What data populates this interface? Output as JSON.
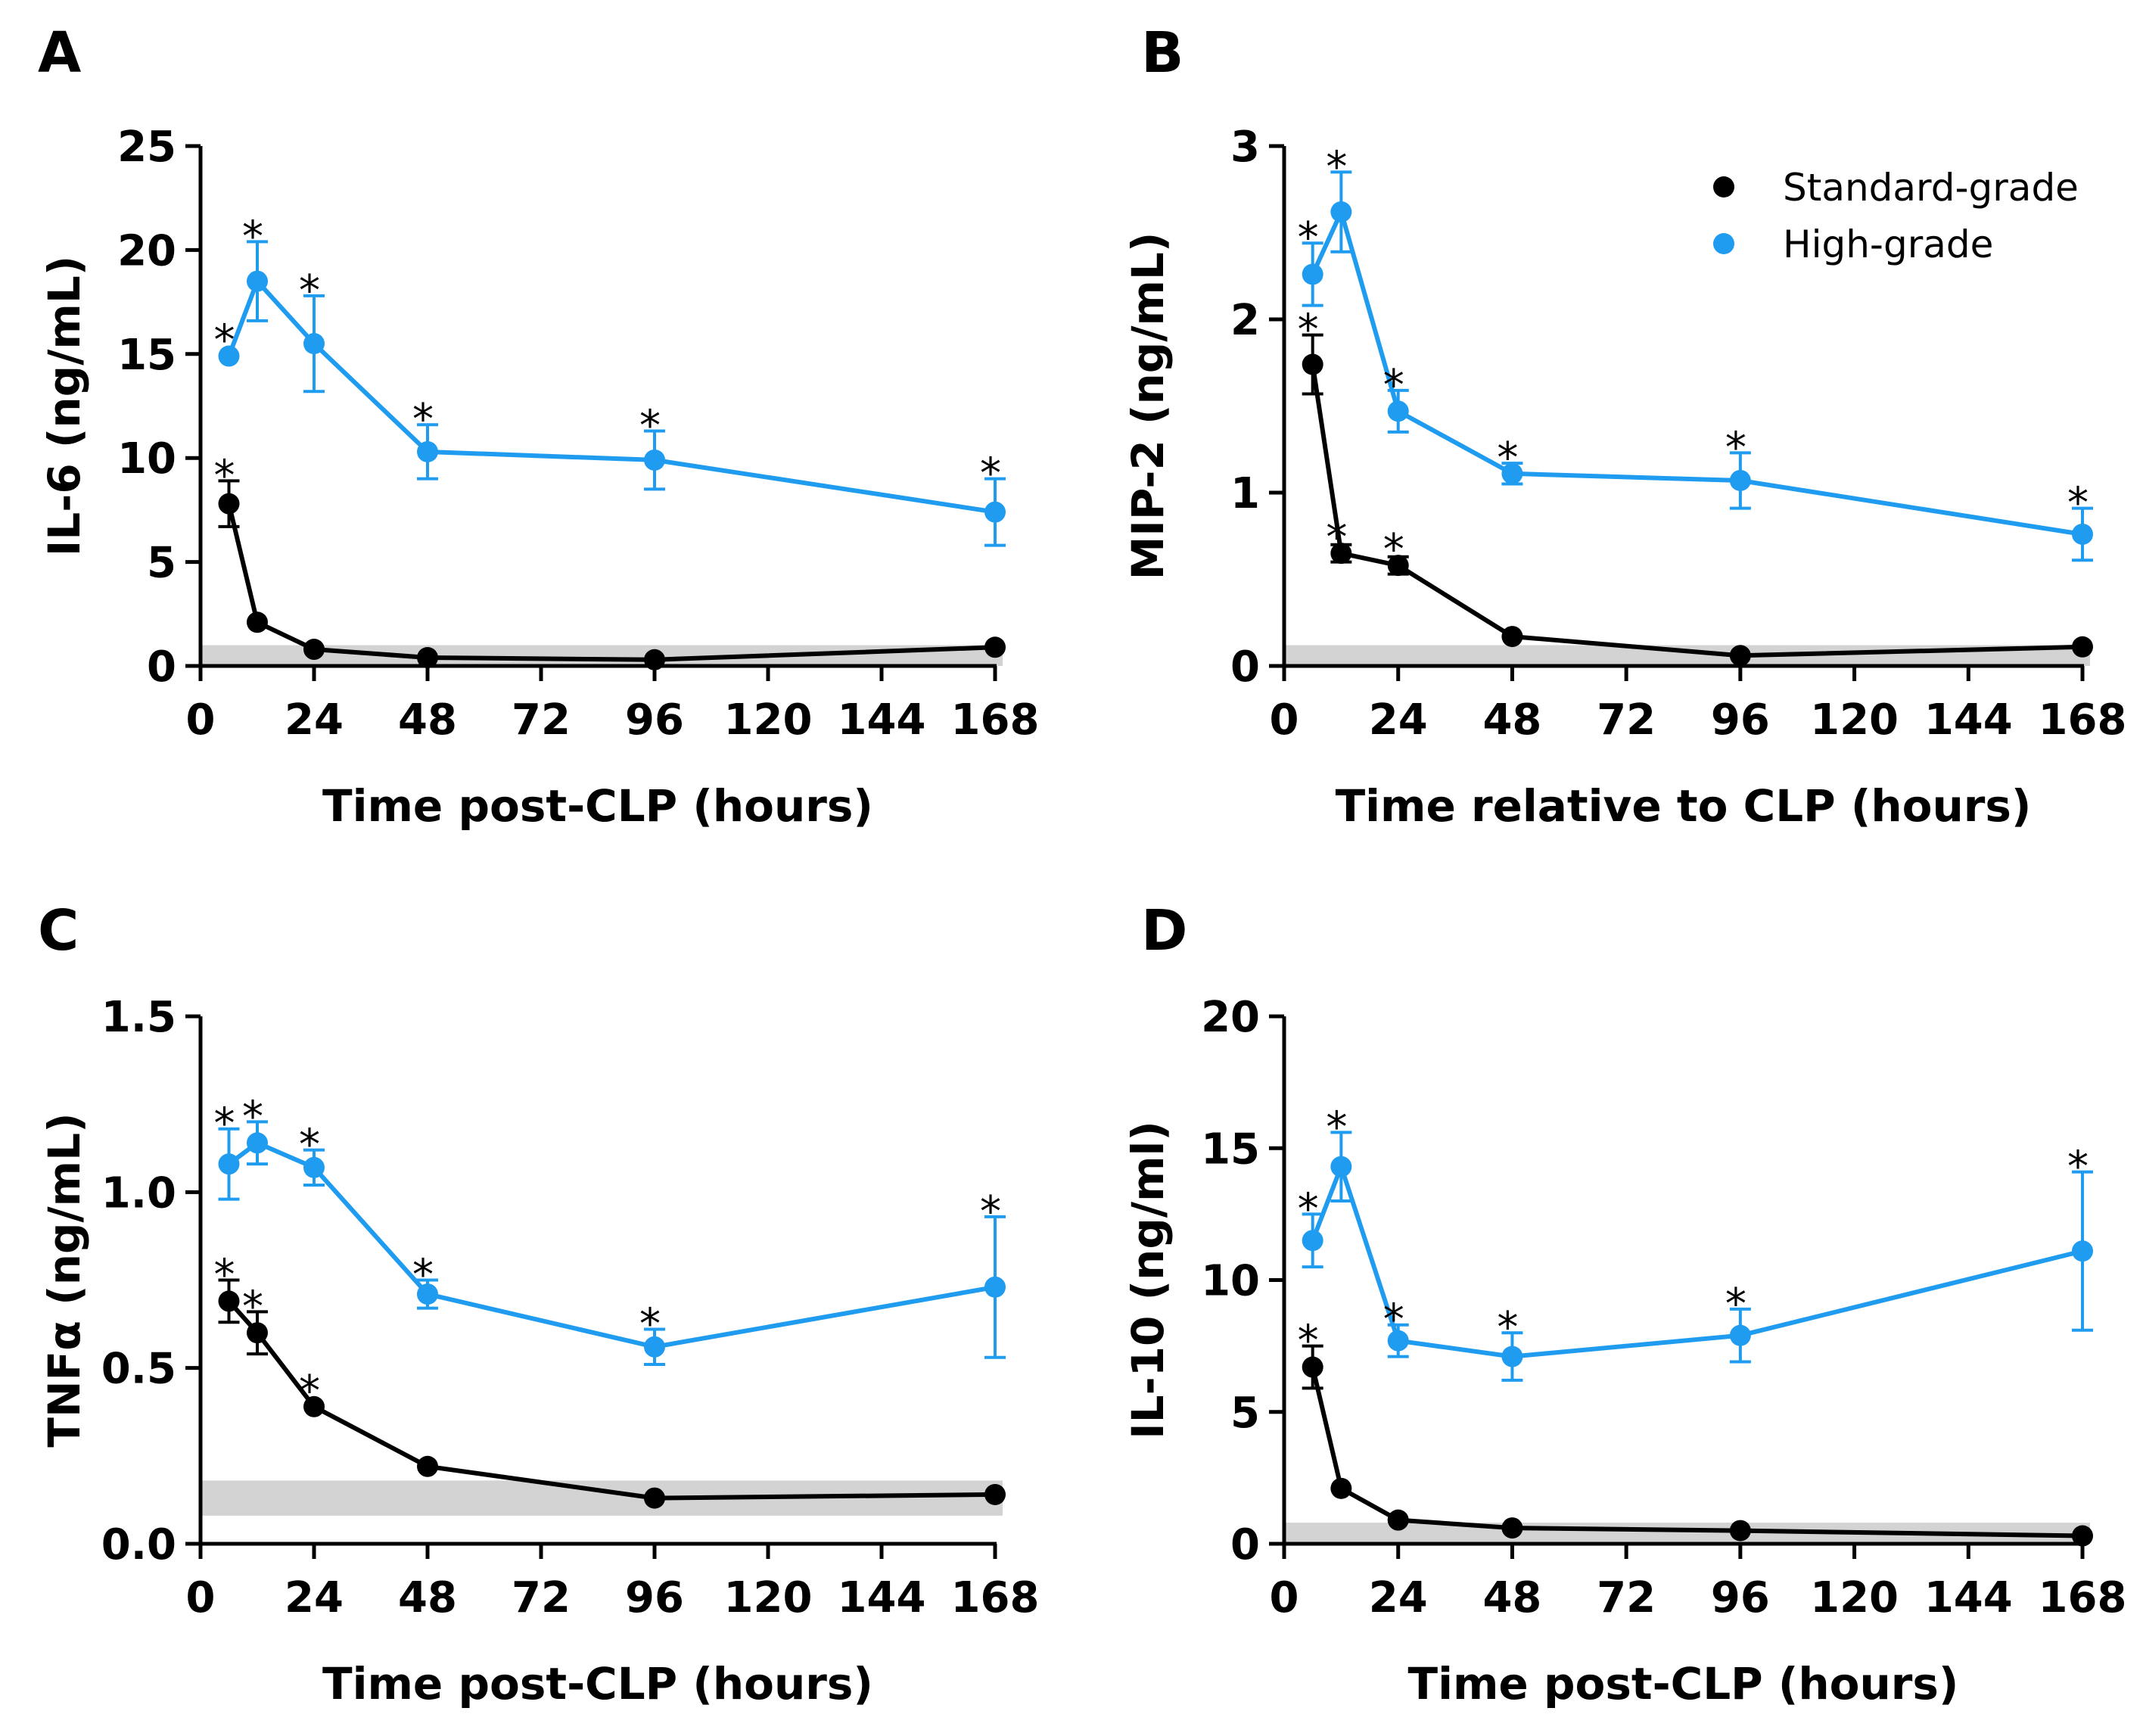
{
  "colors": {
    "standard": "#000000",
    "high": "#1f9cf0",
    "baseline": "#d3d3d3"
  },
  "legend": {
    "standard_label": "Standard-grade",
    "high_label": "High-grade",
    "placement": "top-right of panel B"
  },
  "chart_data": [
    {
      "panel": "A",
      "type": "line",
      "xlabel": "Time post-CLP (hours)",
      "ylabel": "IL-6 (ng/mL)",
      "xlim": [
        0,
        168
      ],
      "ylim": [
        0,
        25
      ],
      "xticks": [
        0,
        24,
        48,
        72,
        96,
        120,
        144,
        168
      ],
      "xtick_labels": [
        "0",
        "24",
        "48",
        "72",
        "96",
        "120",
        "144",
        "168"
      ],
      "yticks": [
        0,
        5,
        10,
        15,
        20,
        25
      ],
      "ytick_labels": [
        "0",
        "5",
        "10",
        "15",
        "20",
        "25"
      ],
      "baseline_band": [
        0,
        1.0
      ],
      "series": [
        {
          "name": "Standard-grade",
          "x": [
            6,
            12,
            24,
            48,
            96,
            168
          ],
          "y": [
            7.8,
            2.1,
            0.8,
            0.4,
            0.3,
            0.9
          ],
          "err": [
            1.1,
            0,
            0,
            0,
            0,
            0
          ],
          "sig": [
            true,
            false,
            false,
            false,
            false,
            false
          ]
        },
        {
          "name": "High-grade",
          "x": [
            6,
            12,
            24,
            48,
            96,
            168
          ],
          "y": [
            14.9,
            18.5,
            15.5,
            10.3,
            9.9,
            7.4
          ],
          "err": [
            0,
            1.9,
            2.3,
            1.3,
            1.4,
            1.6
          ],
          "sig": [
            true,
            true,
            true,
            true,
            true,
            true
          ]
        }
      ]
    },
    {
      "panel": "B",
      "type": "line",
      "xlabel": "Time relative to CLP (hours)",
      "ylabel": "MIP-2 (ng/mL)",
      "xlim": [
        0,
        168
      ],
      "ylim": [
        0,
        3
      ],
      "xticks": [
        0,
        24,
        48,
        72,
        96,
        120,
        144,
        168
      ],
      "xtick_labels": [
        "0",
        "24",
        "48",
        "72",
        "96",
        "120",
        "144",
        "168"
      ],
      "yticks": [
        0,
        1,
        2,
        3
      ],
      "ytick_labels": [
        "0",
        "1",
        "2",
        "3"
      ],
      "baseline_band": [
        0,
        0.12
      ],
      "series": [
        {
          "name": "Standard-grade",
          "x": [
            6,
            12,
            24,
            48,
            96,
            168
          ],
          "y": [
            1.74,
            0.65,
            0.58,
            0.17,
            0.06,
            0.11
          ],
          "err": [
            0.17,
            0.05,
            0.05,
            0,
            0,
            0
          ],
          "sig": [
            true,
            true,
            true,
            false,
            false,
            false
          ]
        },
        {
          "name": "High-grade",
          "x": [
            6,
            12,
            24,
            48,
            96,
            168
          ],
          "y": [
            2.26,
            2.62,
            1.47,
            1.11,
            1.07,
            0.76
          ],
          "err": [
            0.18,
            0.23,
            0.12,
            0.06,
            0.16,
            0.15
          ],
          "sig": [
            true,
            true,
            true,
            true,
            true,
            true
          ]
        }
      ]
    },
    {
      "panel": "C",
      "type": "line",
      "xlabel": "Time post-CLP (hours)",
      "ylabel": "TNFα (ng/mL)",
      "xlim": [
        0,
        168
      ],
      "ylim": [
        0,
        1.5
      ],
      "xticks": [
        0,
        24,
        48,
        72,
        96,
        120,
        144,
        168
      ],
      "xtick_labels": [
        "0",
        "24",
        "48",
        "72",
        "96",
        "120",
        "144",
        "168"
      ],
      "yticks": [
        0,
        0.5,
        1.0,
        1.5
      ],
      "ytick_labels": [
        "0.0",
        "0.5",
        "1.0",
        "1.5"
      ],
      "baseline_band": [
        0.08,
        0.18
      ],
      "series": [
        {
          "name": "Standard-grade",
          "x": [
            6,
            12,
            24,
            48,
            96,
            168
          ],
          "y": [
            0.69,
            0.6,
            0.39,
            0.22,
            0.13,
            0.14
          ],
          "err": [
            0.06,
            0.06,
            0,
            0,
            0,
            0
          ],
          "sig": [
            true,
            true,
            true,
            false,
            false,
            false
          ]
        },
        {
          "name": "High-grade",
          "x": [
            6,
            12,
            24,
            48,
            96,
            168
          ],
          "y": [
            1.08,
            1.14,
            1.07,
            0.71,
            0.56,
            0.73
          ],
          "err": [
            0.1,
            0.06,
            0.05,
            0.04,
            0.05,
            0.2
          ],
          "sig": [
            true,
            true,
            true,
            true,
            true,
            true
          ]
        }
      ]
    },
    {
      "panel": "D",
      "type": "line",
      "xlabel": "Time post-CLP (hours)",
      "ylabel": "IL-10 (ng/ml)",
      "xlim": [
        0,
        168
      ],
      "ylim": [
        0,
        20
      ],
      "xticks": [
        0,
        24,
        48,
        72,
        96,
        120,
        144,
        168
      ],
      "xtick_labels": [
        "0",
        "24",
        "48",
        "72",
        "96",
        "120",
        "144",
        "168"
      ],
      "yticks": [
        0,
        5,
        10,
        15,
        20
      ],
      "ytick_labels": [
        "0",
        "5",
        "10",
        "15",
        "20"
      ],
      "baseline_band": [
        0,
        0.8
      ],
      "series": [
        {
          "name": "Standard-grade",
          "x": [
            6,
            12,
            24,
            48,
            96,
            168
          ],
          "y": [
            6.7,
            2.1,
            0.9,
            0.6,
            0.5,
            0.3
          ],
          "err": [
            0.8,
            0,
            0,
            0,
            0,
            0
          ],
          "sig": [
            true,
            false,
            false,
            false,
            false,
            false
          ]
        },
        {
          "name": "High-grade",
          "x": [
            6,
            12,
            24,
            48,
            96,
            168
          ],
          "y": [
            11.5,
            14.3,
            7.7,
            7.1,
            7.9,
            11.1
          ],
          "err": [
            1.0,
            1.3,
            0.6,
            0.9,
            1.0,
            3.0
          ],
          "sig": [
            true,
            true,
            true,
            true,
            true,
            true
          ]
        }
      ]
    }
  ]
}
